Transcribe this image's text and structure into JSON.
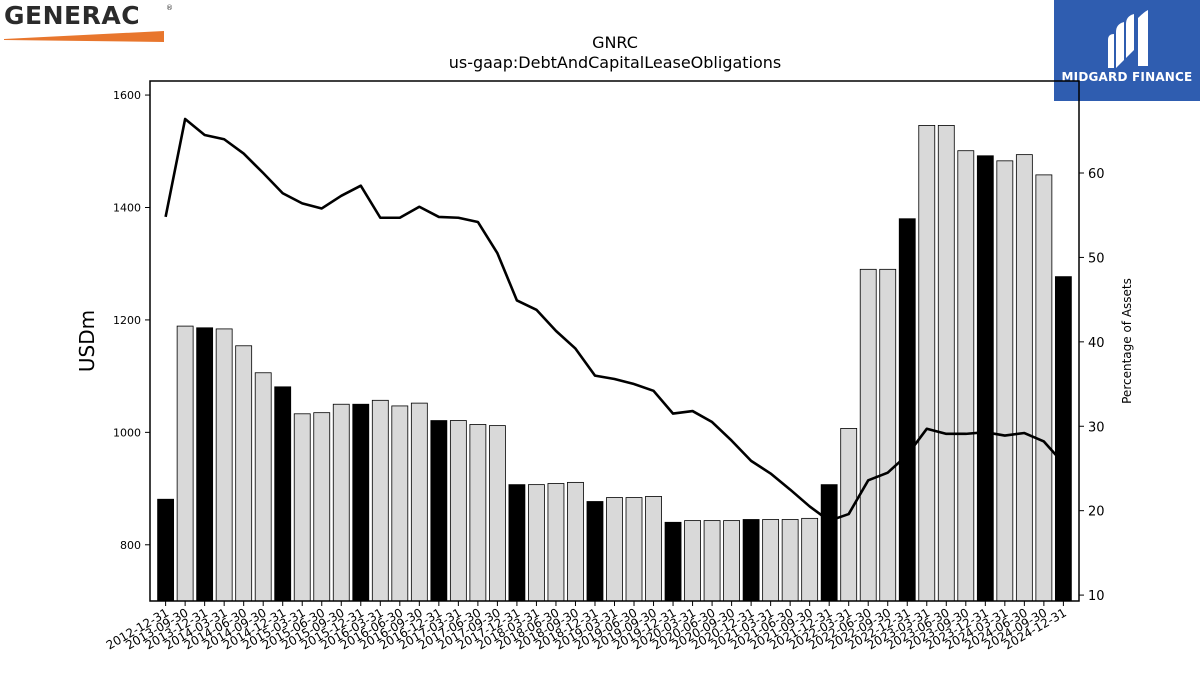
{
  "logos": {
    "left_brand": "GENERAC",
    "left_reg": "®",
    "left_accent_color": "#e8762d",
    "right_brand": "MIDGARD FINANCE",
    "right_bg_color": "#2f5db0"
  },
  "chart_data": {
    "type": "bar",
    "title": "GNRC",
    "subtitle": "us-gaap:DebtAndCapitalLeaseObligations",
    "ylabel": "USDm",
    "y2label": "Percentage of Assets",
    "ylim": [
      700,
      1625
    ],
    "y2lim": [
      9.3,
      70.9
    ],
    "yticks": [
      800,
      1000,
      1200,
      1400,
      1600
    ],
    "y2ticks": [
      10,
      20,
      30,
      40,
      50,
      60
    ],
    "colors": {
      "bar_default": "#d9d9d9",
      "bar_highlight": "#000000",
      "line": "#000000"
    },
    "categories": [
      "2012-12-31",
      "2013-09-30",
      "2013-12-31",
      "2014-03-31",
      "2014-06-30",
      "2014-09-30",
      "2014-12-31",
      "2015-03-31",
      "2015-06-30",
      "2015-09-30",
      "2015-12-31",
      "2016-03-31",
      "2016-06-30",
      "2016-09-30",
      "2016-12-31",
      "2017-03-31",
      "2017-06-30",
      "2017-09-30",
      "2017-12-31",
      "2018-03-31",
      "2018-06-30",
      "2018-09-30",
      "2018-12-31",
      "2019-03-31",
      "2019-06-30",
      "2019-09-30",
      "2019-12-31",
      "2020-03-31",
      "2020-06-30",
      "2020-09-30",
      "2020-12-31",
      "2021-03-31",
      "2021-06-30",
      "2021-09-30",
      "2021-12-31",
      "2022-03-31",
      "2022-06-30",
      "2022-09-30",
      "2022-12-31",
      "2023-03-31",
      "2023-06-30",
      "2023-09-30",
      "2023-12-31",
      "2024-03-31",
      "2024-06-30",
      "2024-09-30",
      "2024-12-31"
    ],
    "series": [
      {
        "kind": "bar",
        "values": [
          881,
          1189,
          1186,
          1184,
          1154,
          1106,
          1081,
          1033,
          1035,
          1050,
          1050,
          1057,
          1047,
          1052,
          1021,
          1021,
          1014,
          1012,
          907,
          907,
          909,
          911,
          877,
          884,
          884,
          886,
          840,
          843,
          843,
          843,
          845,
          845,
          845,
          847,
          907,
          1007,
          1290,
          1290,
          1380,
          1546,
          1546,
          1501,
          1492,
          1483,
          1494,
          1458,
          1277
        ],
        "highlight_indices": [
          0,
          2,
          6,
          10,
          14,
          18,
          22,
          26,
          30,
          34,
          38,
          42,
          46
        ]
      },
      {
        "kind": "line",
        "axis": "right",
        "values": [
          54.8,
          66.4,
          64.5,
          64.0,
          62.3,
          60.0,
          57.6,
          56.4,
          55.8,
          57.3,
          58.5,
          54.7,
          54.7,
          56.0,
          54.8,
          54.7,
          54.2,
          50.5,
          44.9,
          43.8,
          41.3,
          39.2,
          36.0,
          35.6,
          35.0,
          34.2,
          31.5,
          31.8,
          30.5,
          28.3,
          25.9,
          24.4,
          22.5,
          20.5,
          18.8,
          19.6,
          23.6,
          24.5,
          26.6,
          29.7,
          29.1,
          29.1,
          29.3,
          28.9,
          29.2,
          28.2,
          25.6
        ]
      }
    ]
  }
}
